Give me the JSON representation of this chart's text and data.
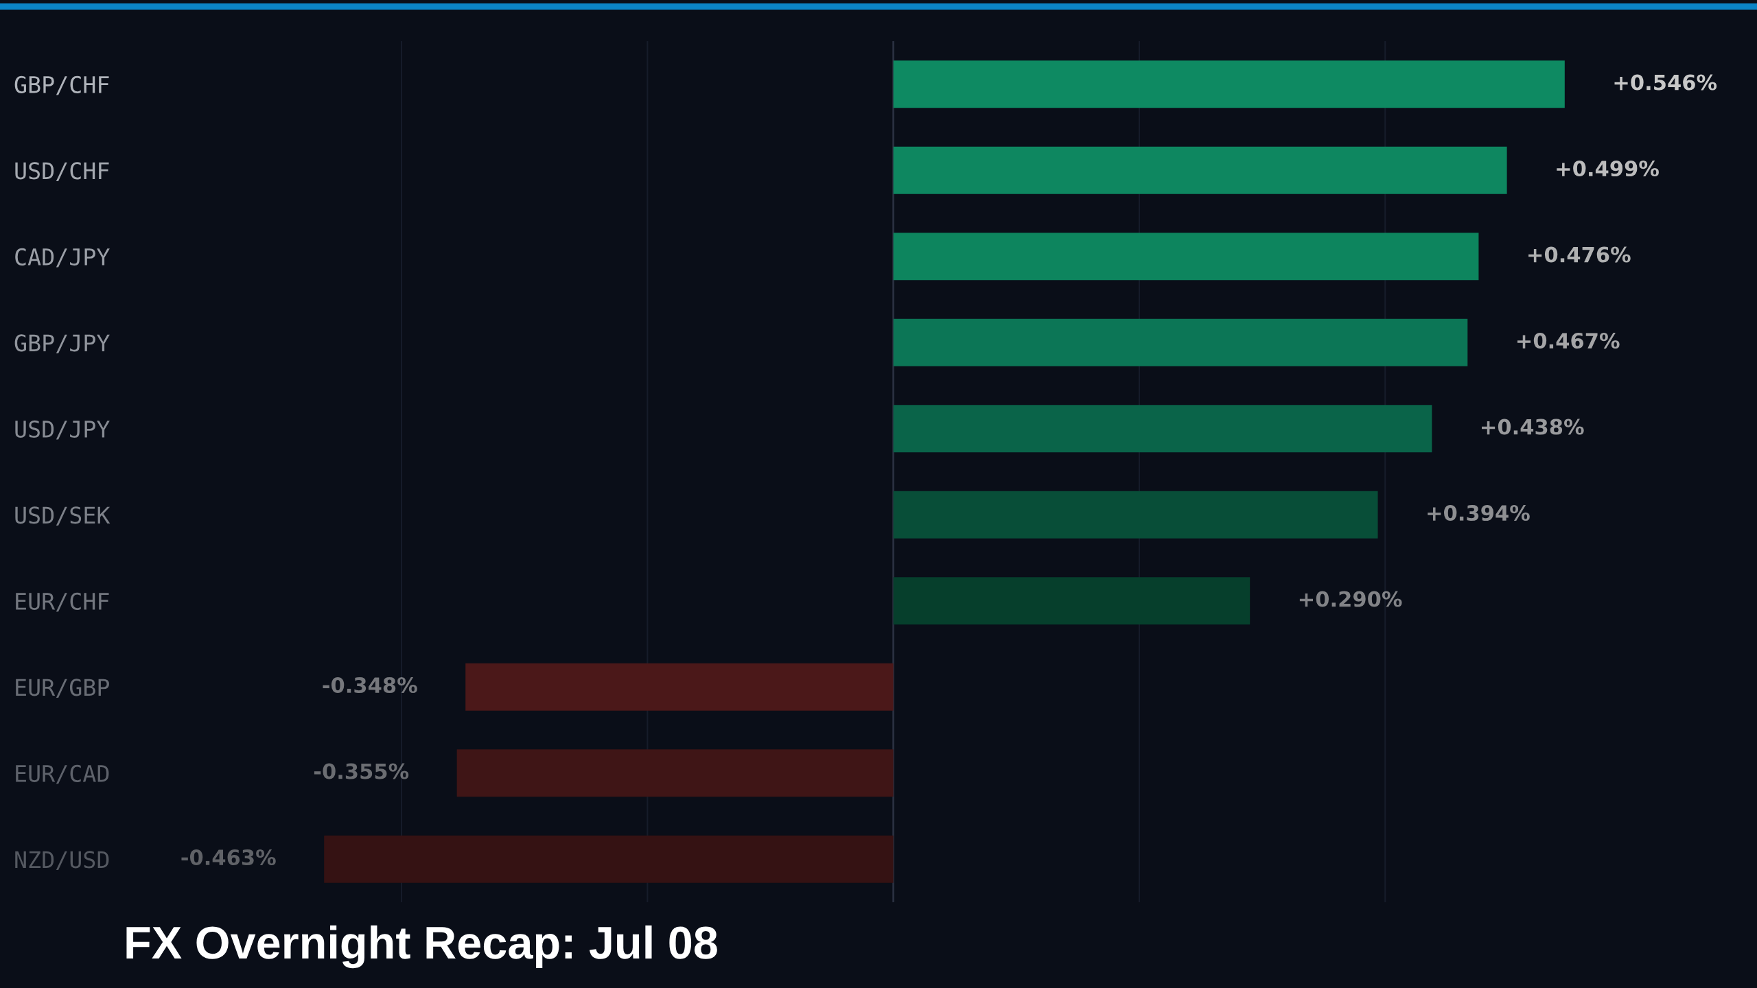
{
  "chart_data": {
    "type": "bar",
    "orientation": "horizontal",
    "title": "FX Overnight Recap: Jul 08",
    "categories": [
      "GBP/CHF",
      "USD/CHF",
      "CAD/JPY",
      "GBP/JPY",
      "USD/JPY",
      "USD/SEK",
      "EUR/CHF",
      "EUR/GBP",
      "EUR/CAD",
      "NZD/USD"
    ],
    "values": [
      0.546,
      0.499,
      0.476,
      0.467,
      0.438,
      0.394,
      0.29,
      -0.348,
      -0.355,
      -0.463
    ],
    "colors": [
      "#0e8a62",
      "#0e8760",
      "#0d855e",
      "#0c7656",
      "#0a6449",
      "#084e38",
      "#063f2c",
      "#4b1819",
      "#3f1516",
      "#351213"
    ],
    "value_labels": [
      "+0.546%",
      "+0.499%",
      "+0.476%",
      "+0.467%",
      "+0.438%",
      "+0.394%",
      "+0.290%",
      "-0.348%",
      "-0.355%",
      "-0.463%"
    ],
    "xticks": [
      {
        "value": -0.4,
        "label": null
      },
      {
        "value": -0.2,
        "label": null
      },
      {
        "value": 0,
        "label": null
      },
      {
        "value": 0.2,
        "label": null
      },
      {
        "value": 0.4,
        "label": null
      }
    ],
    "grid": "x",
    "tick_labels": "y"
  }
}
